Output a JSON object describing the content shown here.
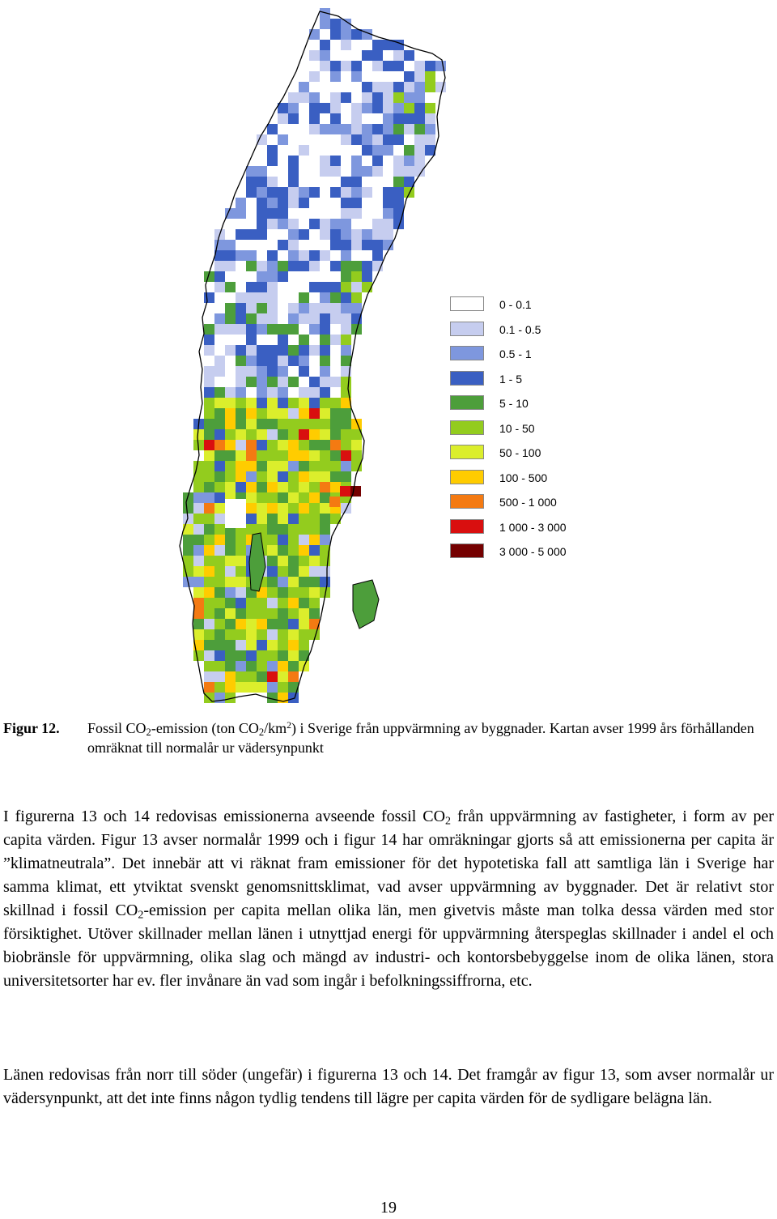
{
  "legend": {
    "items": [
      {
        "label": "0 - 0.1",
        "color": "#ffffff"
      },
      {
        "label": "0.1 - 0.5",
        "color": "#c6cdef"
      },
      {
        "label": "0.5 - 1",
        "color": "#7e97de"
      },
      {
        "label": "1 - 5",
        "color": "#3a5fc2"
      },
      {
        "label": "5 - 10",
        "color": "#4d9e3b"
      },
      {
        "label": "10 - 50",
        "color": "#93cc1e"
      },
      {
        "label": "50 - 100",
        "color": "#dbee2c"
      },
      {
        "label": "100 - 500",
        "color": "#ffcc00"
      },
      {
        "label": "500 - 1 000",
        "color": "#f47a12"
      },
      {
        "label": "1 000 - 3 000",
        "color": "#d90f0f"
      },
      {
        "label": "3 000 - 5 000",
        "color": "#750000"
      }
    ]
  },
  "caption": {
    "label": "Figur 12.",
    "t1": "Fossil CO",
    "s1": "2",
    "t2": "-emission (ton CO",
    "s2": "2",
    "t3": "/km",
    "sup1": "2",
    "t4": ") i Sverige från uppvärmning av byggnader. Kartan avser 1999 års förhållanden omräknat till normalår ur vädersynpunkt"
  },
  "para1": {
    "a": "I figurerna 13 och 14 redovisas emissionerna avseende fossil CO",
    "s1": "2",
    "b": " från uppvärmning av fastigheter, i form av per capita värden. Figur 13 avser normalår 1999 och i figur 14 har omräkningar gjorts så att emissionerna per capita är ”klimatneutrala”. Det innebär att vi räknat fram emissioner för det hypotetiska fall att samtliga län i Sverige har samma klimat, ett ytviktat svenskt genomsnittsklimat, vad avser uppvärmning av byggnader. Det är relativt stor skillnad i fossil CO",
    "s2": "2",
    "c": "-emission per capita mellan olika län, men givetvis måste man tolka dessa värden med stor försiktighet. Utöver skillnader mellan länen i utnyttjad energi för uppvärmning återspeglas skillnader i andel el och biobränsle för uppvärmning, olika slag och mängd av industri- och kontorsbebyggelse inom de olika länen, stora universitetsorter har ev. fler invånare än vad som ingår i befolkningssiffrorna, etc."
  },
  "para2": {
    "text": "Länen redovisas från norr till söder (ungefär) i figurerna 13 och 14. Det framgår av figur 13, som avser normalår ur vädersynpunkt, att det inte finns någon tydlig tendens till lägre per capita värden för de sydligare belägna län."
  },
  "page_number": "19"
}
